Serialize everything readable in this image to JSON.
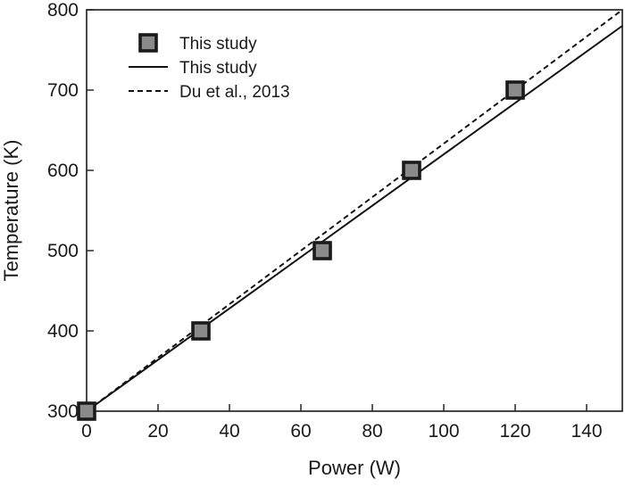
{
  "chart_data": {
    "type": "scatter",
    "title": "",
    "xlabel": "Power (W)",
    "ylabel": "Temperature (K)",
    "xlim": [
      0,
      150
    ],
    "ylim": [
      300,
      800
    ],
    "xticks": [
      0,
      20,
      40,
      60,
      80,
      100,
      120,
      140
    ],
    "yticks": [
      300,
      400,
      500,
      600,
      700,
      800
    ],
    "grid": false,
    "legend_position": "top-left",
    "series": [
      {
        "name": "This study",
        "kind": "markers",
        "marker": "square",
        "x": [
          0,
          32,
          66,
          91,
          120
        ],
        "y": [
          300,
          400,
          500,
          600,
          700
        ]
      },
      {
        "name": "This study",
        "kind": "line",
        "style": "solid",
        "x": [
          0,
          150
        ],
        "y": [
          300,
          780
        ]
      },
      {
        "name": "Du et al., 2013",
        "kind": "line",
        "style": "dashed",
        "x": [
          0,
          150
        ],
        "y": [
          300,
          800
        ]
      }
    ]
  }
}
